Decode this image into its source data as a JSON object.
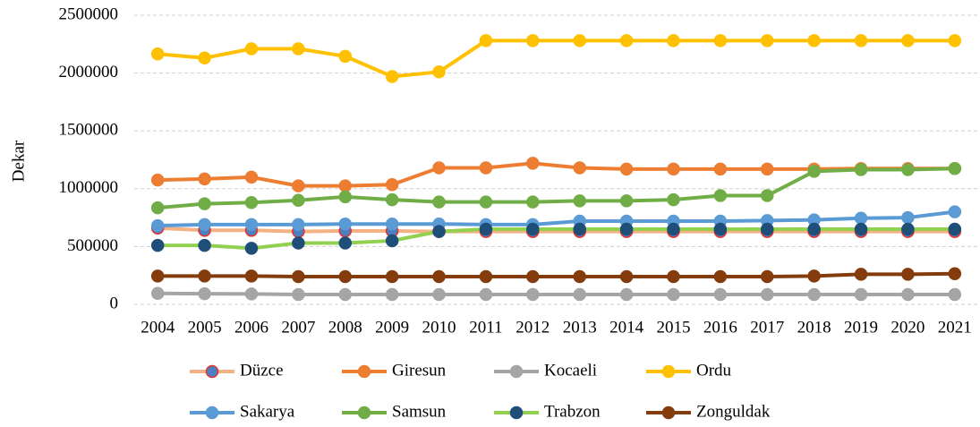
{
  "chart_data": {
    "type": "line",
    "y_label": "Dekar",
    "categories": [
      "2004",
      "2005",
      "2006",
      "2007",
      "2008",
      "2009",
      "2010",
      "2011",
      "2012",
      "2013",
      "2014",
      "2015",
      "2016",
      "2017",
      "2018",
      "2019",
      "2020",
      "2021"
    ],
    "ylim": [
      0,
      2500000
    ],
    "yticks": [
      0,
      500000,
      1000000,
      1500000,
      2000000,
      2500000
    ],
    "grid": true,
    "legend": "bottom",
    "series": [
      {
        "name": "Düzce",
        "color": "#f4b183",
        "marker_color": "#4a7fc1",
        "marker_edge": "#e8302a",
        "values": [
          660000,
          640000,
          640000,
          630000,
          635000,
          635000,
          630000,
          630000,
          630000,
          630000,
          630000,
          630000,
          630000,
          630000,
          630000,
          630000,
          630000,
          630000
        ]
      },
      {
        "name": "Giresun",
        "color": "#ed7d31",
        "values": [
          1075000,
          1085000,
          1100000,
          1025000,
          1025000,
          1035000,
          1180000,
          1180000,
          1220000,
          1180000,
          1170000,
          1170000,
          1170000,
          1170000,
          1170000,
          1175000,
          1175000,
          1175000
        ]
      },
      {
        "name": "Kocaeli",
        "color": "#a5a5a5",
        "values": [
          95000,
          92000,
          90000,
          85000,
          85000,
          85000,
          85000,
          85000,
          85000,
          85000,
          85000,
          85000,
          85000,
          85000,
          85000,
          85000,
          85000,
          85000
        ]
      },
      {
        "name": "Ordu",
        "color": "#ffc000",
        "values": [
          2165000,
          2130000,
          2210000,
          2210000,
          2145000,
          1970000,
          2010000,
          2280000,
          2280000,
          2280000,
          2280000,
          2280000,
          2280000,
          2280000,
          2280000,
          2280000,
          2280000,
          2280000
        ]
      },
      {
        "name": "Sakarya",
        "color": "#5b9bd5",
        "values": [
          680000,
          690000,
          690000,
          690000,
          695000,
          695000,
          695000,
          690000,
          690000,
          720000,
          720000,
          720000,
          720000,
          725000,
          730000,
          745000,
          750000,
          800000
        ]
      },
      {
        "name": "Samsun",
        "color": "#70ad47",
        "values": [
          835000,
          870000,
          880000,
          900000,
          930000,
          905000,
          885000,
          885000,
          885000,
          895000,
          895000,
          905000,
          940000,
          940000,
          1150000,
          1165000,
          1165000,
          1175000
        ]
      },
      {
        "name": "Trabzon",
        "color": "#92d050",
        "marker_color": "#1f4e79",
        "values": [
          510000,
          510000,
          485000,
          530000,
          530000,
          550000,
          630000,
          650000,
          650000,
          650000,
          650000,
          650000,
          650000,
          650000,
          650000,
          650000,
          650000,
          650000
        ]
      },
      {
        "name": "Zonguldak",
        "color": "#843c0c",
        "values": [
          245000,
          245000,
          245000,
          240000,
          240000,
          240000,
          240000,
          240000,
          240000,
          240000,
          240000,
          240000,
          240000,
          240000,
          245000,
          260000,
          260000,
          265000
        ]
      }
    ]
  }
}
